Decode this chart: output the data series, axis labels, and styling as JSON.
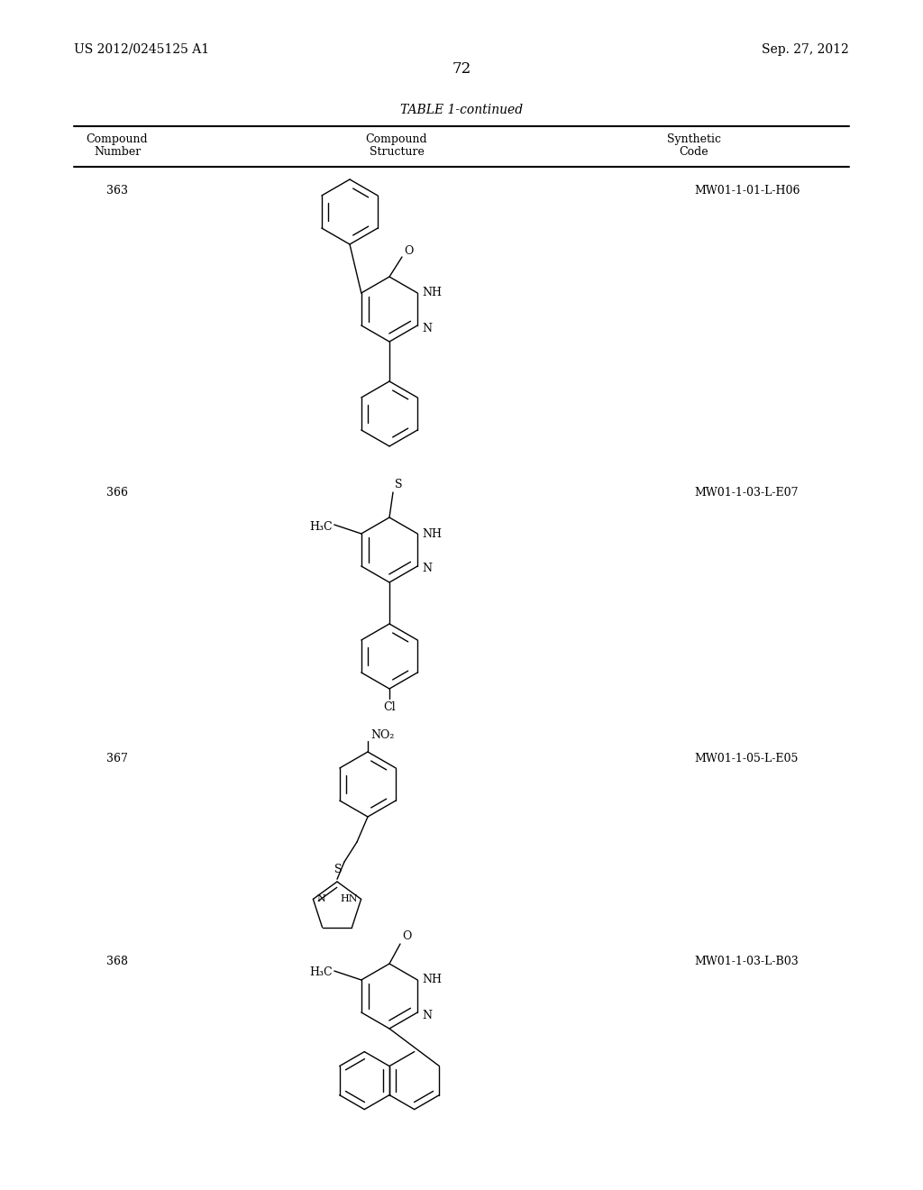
{
  "background_color": "#ffffff",
  "page_number": "72",
  "header_left": "US 2012/0245125 A1",
  "header_right": "Sep. 27, 2012",
  "table_title": "TABLE 1-continued",
  "compounds": [
    {
      "number": "363",
      "code": "MW01-1-01-L-H06"
    },
    {
      "number": "366",
      "code": "MW01-1-03-L-E07"
    },
    {
      "number": "367",
      "code": "MW01-1-05-L-E05"
    },
    {
      "number": "368",
      "code": "MW01-1-03-L-B03"
    }
  ]
}
